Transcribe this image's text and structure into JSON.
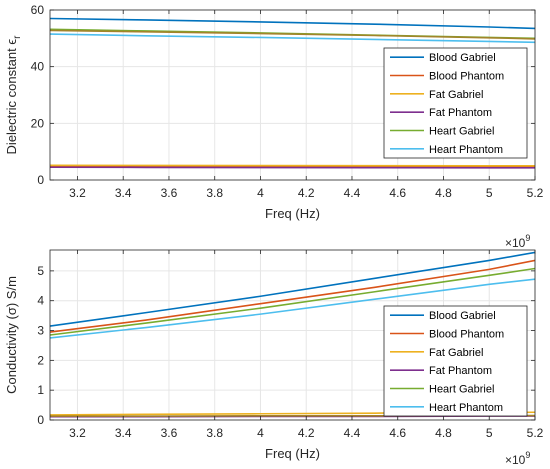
{
  "chart_data": [
    {
      "type": "line",
      "xlabel": "Freq (Hz)",
      "ylabel": "Dielectric constant ϵ",
      "ylabel_sub": "r",
      "x_exponent_base": "×10",
      "x_exponent_power": "9",
      "xlim": [
        3.08,
        5.2
      ],
      "ylim": [
        0,
        60
      ],
      "xticks": [
        3.2,
        3.4,
        3.6,
        3.8,
        4,
        4.2,
        4.4,
        4.6,
        4.8,
        5,
        5.2
      ],
      "xtick_labels": [
        "3.2",
        "3.4",
        "3.6",
        "3.8",
        "4",
        "4.2",
        "4.4",
        "4.6",
        "4.8",
        "5",
        "5.2"
      ],
      "yticks": [
        0,
        20,
        40,
        60
      ],
      "ytick_labels": [
        "0",
        "20",
        "40",
        "60"
      ],
      "grid": true,
      "legend_position": "right",
      "x": [
        3.08,
        3.5,
        4.0,
        4.5,
        5.0,
        5.2
      ],
      "series": [
        {
          "name": "Blood Gabriel",
          "color": "#0072BD",
          "values": [
            57.0,
            56.5,
            55.8,
            55.0,
            54.0,
            53.5
          ]
        },
        {
          "name": "Blood Phantom",
          "color": "#D95319",
          "values": [
            4.9,
            4.85,
            4.8,
            4.75,
            4.7,
            4.7
          ]
        },
        {
          "name": "Fat Gabriel",
          "color": "#EDB120",
          "values": [
            5.2,
            5.15,
            5.1,
            5.05,
            5.0,
            5.0
          ]
        },
        {
          "name": "Fat Phantom",
          "color": "#7E2F8E",
          "values": [
            4.5,
            4.45,
            4.4,
            4.35,
            4.3,
            4.3
          ]
        },
        {
          "name": "Heart Gabriel",
          "color": "#77AC30",
          "values": [
            53.2,
            52.6,
            51.9,
            51.1,
            50.3,
            50.0
          ]
        },
        {
          "name": "Heart Phantom",
          "color": "#4DBEEE",
          "values": [
            51.5,
            50.9,
            50.3,
            49.6,
            48.9,
            48.6
          ]
        },
        {
          "name": "",
          "color": "#A2842A",
          "values": [
            52.8,
            52.3,
            51.7,
            51.0,
            50.2,
            49.8
          ]
        }
      ]
    },
    {
      "type": "line",
      "xlabel": "Freq (Hz)",
      "ylabel": "Conductivity (σ) S/m",
      "x_exponent_base": "×10",
      "x_exponent_power": "9",
      "xlim": [
        3.08,
        5.2
      ],
      "ylim": [
        0,
        5.7
      ],
      "xticks": [
        3.2,
        3.4,
        3.6,
        3.8,
        4,
        4.2,
        4.4,
        4.6,
        4.8,
        5,
        5.2
      ],
      "xtick_labels": [
        "3.2",
        "3.4",
        "3.6",
        "3.8",
        "4",
        "4.2",
        "4.4",
        "4.6",
        "4.8",
        "5",
        "5.2"
      ],
      "yticks": [
        0,
        1,
        2,
        3,
        4,
        5
      ],
      "ytick_labels": [
        "0",
        "1",
        "2",
        "3",
        "4",
        "5"
      ],
      "grid": true,
      "legend_position": "bottom-right",
      "x": [
        3.08,
        3.5,
        4.0,
        4.5,
        5.0,
        5.2
      ],
      "series": [
        {
          "name": "Blood Gabriel",
          "color": "#0072BD",
          "values": [
            3.15,
            3.6,
            4.15,
            4.75,
            5.35,
            5.62
          ]
        },
        {
          "name": "Blood Phantom",
          "color": "#D95319",
          "values": [
            2.95,
            3.35,
            3.9,
            4.45,
            5.05,
            5.35
          ]
        },
        {
          "name": "Fat Gabriel",
          "color": "#EDB120",
          "values": [
            0.17,
            0.19,
            0.21,
            0.23,
            0.25,
            0.26
          ]
        },
        {
          "name": "Fat Phantom",
          "color": "#7E2F8E",
          "values": [
            0.11,
            0.11,
            0.12,
            0.12,
            0.13,
            0.13
          ]
        },
        {
          "name": "Heart Gabriel",
          "color": "#77AC30",
          "values": [
            2.85,
            3.25,
            3.75,
            4.3,
            4.85,
            5.08
          ]
        },
        {
          "name": "Heart Phantom",
          "color": "#4DBEEE",
          "values": [
            2.75,
            3.1,
            3.55,
            4.05,
            4.55,
            4.72
          ]
        },
        {
          "name": "",
          "color": "#A2842A",
          "values": [
            0.13,
            0.13,
            0.14,
            0.14,
            0.15,
            0.15
          ]
        }
      ]
    }
  ]
}
